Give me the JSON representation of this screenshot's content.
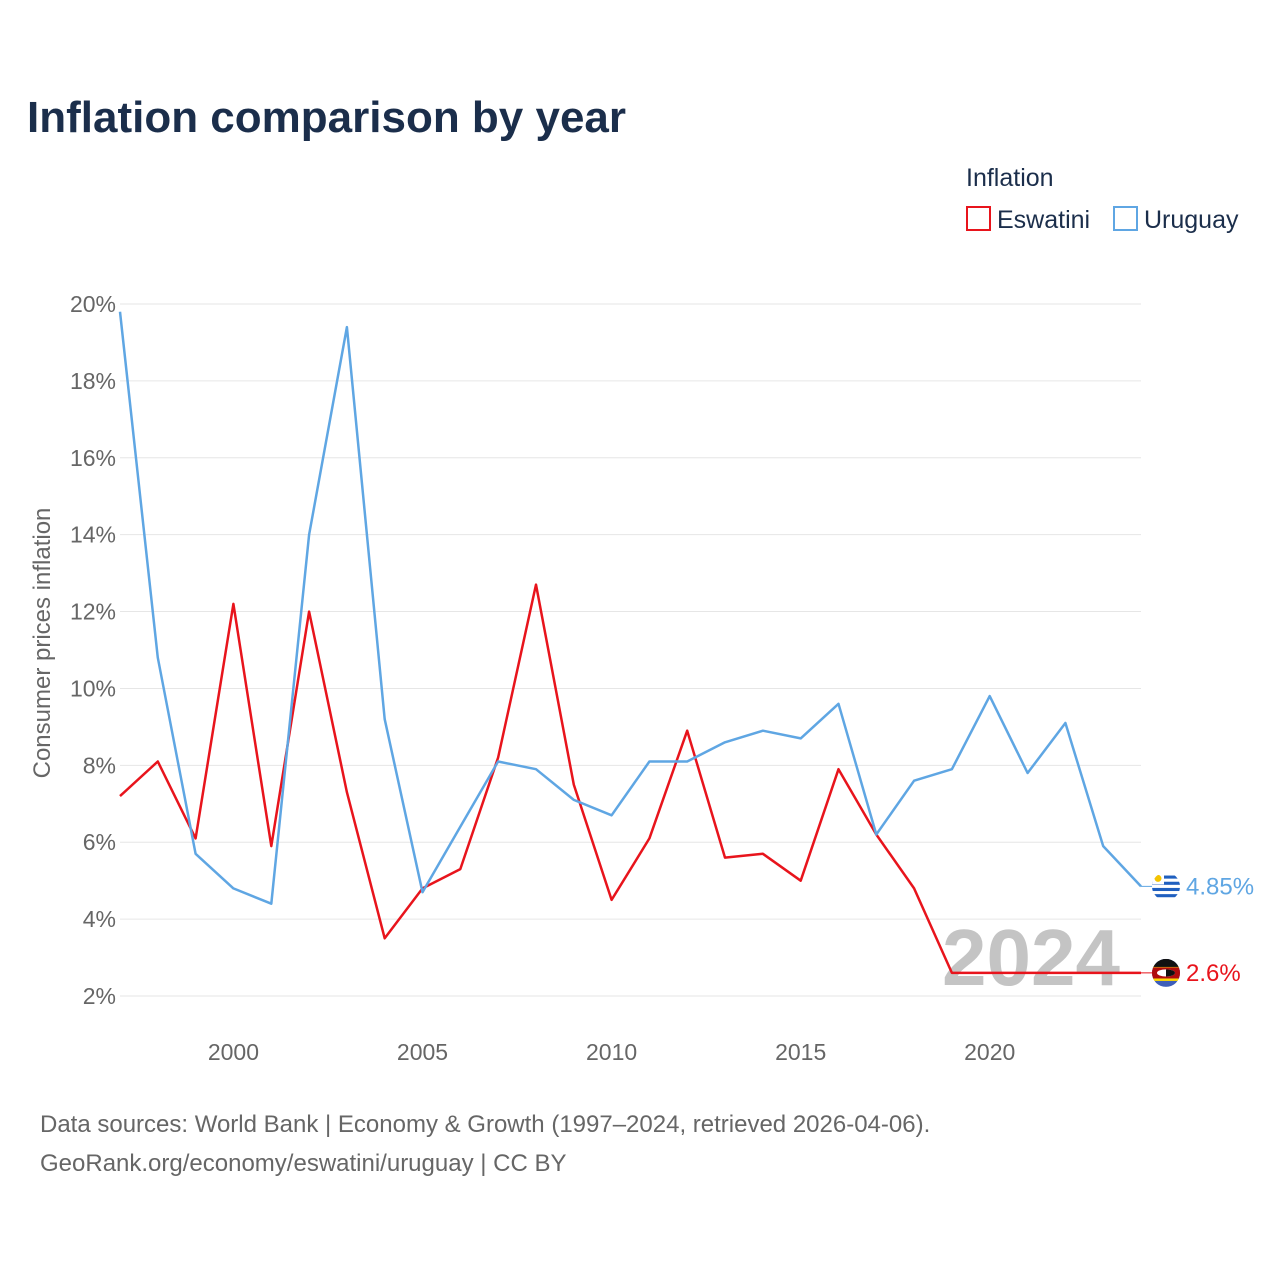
{
  "chart_data": {
    "type": "line",
    "title": "Inflation comparison by year",
    "xlabel": "",
    "ylabel": "Consumer prices inflation",
    "legend_title": "Inflation",
    "legend_position": "top-right",
    "xlim": [
      1997,
      2024
    ],
    "ylim": [
      1.5,
      20.5
    ],
    "y_ticks": [
      2,
      4,
      6,
      8,
      10,
      12,
      14,
      16,
      18,
      20
    ],
    "y_tick_labels": [
      "2%",
      "4%",
      "6%",
      "8%",
      "10%",
      "12%",
      "14%",
      "16%",
      "18%",
      "20%"
    ],
    "x_ticks": [
      2000,
      2005,
      2010,
      2015,
      2020
    ],
    "x_tick_labels": [
      "2000",
      "2005",
      "2010",
      "2015",
      "2020"
    ],
    "grid": true,
    "year_watermark": "2024",
    "x": [
      1997,
      1998,
      1999,
      2000,
      2001,
      2002,
      2003,
      2004,
      2005,
      2006,
      2007,
      2008,
      2009,
      2010,
      2011,
      2012,
      2013,
      2014,
      2015,
      2016,
      2017,
      2018,
      2019,
      2020,
      2021,
      2022,
      2023,
      2024
    ],
    "series": [
      {
        "name": "Eswatini",
        "color": "#e8141c",
        "end_label": "2.6%",
        "flag_icon": "eswatini-flag-icon",
        "values": [
          7.2,
          8.1,
          6.1,
          12.2,
          5.9,
          12.0,
          7.3,
          3.5,
          4.8,
          5.3,
          8.2,
          12.7,
          7.5,
          4.5,
          6.1,
          8.9,
          5.6,
          5.7,
          5.0,
          7.9,
          6.2,
          4.8,
          2.6,
          null,
          null,
          null,
          null,
          2.6
        ]
      },
      {
        "name": "Uruguay",
        "color": "#5fa6e3",
        "end_label": "4.85%",
        "flag_icon": "uruguay-flag-icon",
        "values": [
          19.8,
          10.8,
          5.7,
          4.8,
          4.4,
          14.0,
          19.4,
          9.2,
          4.7,
          6.4,
          8.1,
          7.9,
          7.1,
          6.7,
          8.1,
          8.1,
          8.6,
          8.9,
          8.7,
          9.6,
          6.2,
          7.6,
          7.9,
          9.8,
          7.8,
          9.1,
          5.9,
          4.85
        ]
      }
    ]
  },
  "footer": {
    "line1": "Data sources: World Bank | Economy & Growth (1997–2024, retrieved 2026-04-06).",
    "line2": "GeoRank.org/economy/eswatini/uruguay | CC BY"
  }
}
